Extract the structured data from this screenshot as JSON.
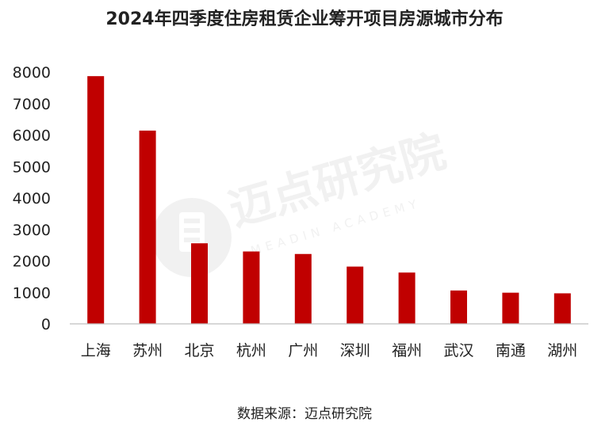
{
  "title": "2024年四季度住房租赁企业筹开项目房源城市分布",
  "source": "数据来源：迈点研究院",
  "watermark": {
    "brand": "迈点研究院",
    "tagline": "MEADIN ACADEMY"
  },
  "colors": {
    "bar": "#c00000",
    "axis": "#bfbfbf",
    "text": "#222222",
    "watermark": "#e6e6e6"
  },
  "chart_data": {
    "type": "bar",
    "title": "2024年四季度住房租赁企业筹开项目房源城市分布",
    "xlabel": "",
    "ylabel": "",
    "categories": [
      "上海",
      "苏州",
      "北京",
      "杭州",
      "广州",
      "深圳",
      "福州",
      "武汉",
      "南通",
      "湖州"
    ],
    "values": [
      7870,
      6140,
      2560,
      2300,
      2220,
      1820,
      1630,
      1060,
      990,
      970
    ],
    "ylim": [
      0,
      8000
    ],
    "yticks": [
      0,
      1000,
      2000,
      3000,
      4000,
      5000,
      6000,
      7000,
      8000
    ],
    "grid": false,
    "legend": "none"
  }
}
